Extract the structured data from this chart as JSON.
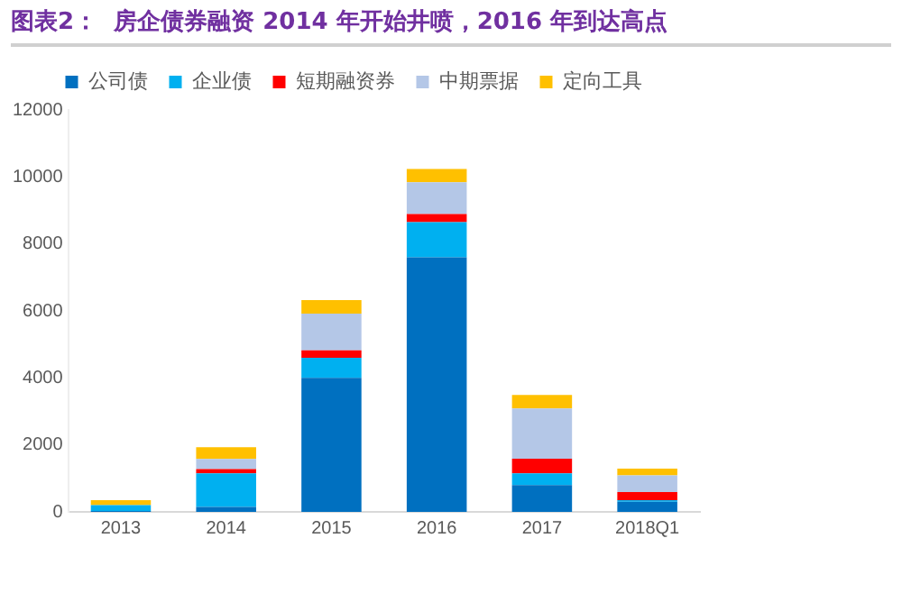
{
  "chart_data": {
    "type": "bar",
    "stacked": true,
    "title": "图表2：  房企债券融资 2014 年开始井喷，2016 年到达高点",
    "categories": [
      "2013",
      "2014",
      "2015",
      "2016",
      "2017",
      "2018Q1"
    ],
    "series": [
      {
        "name": "公司债",
        "color": "#0070c0",
        "values": [
          30,
          150,
          4000,
          7600,
          800,
          300
        ]
      },
      {
        "name": "企业债",
        "color": "#00b0f0",
        "values": [
          170,
          1000,
          600,
          1050,
          350,
          50
        ]
      },
      {
        "name": "短期融资券",
        "color": "#ff0000",
        "values": [
          0,
          130,
          220,
          240,
          440,
          240
        ]
      },
      {
        "name": "中期票据",
        "color": "#b4c7e7",
        "values": [
          null,
          300,
          1100,
          950,
          1500,
          500
        ]
      },
      {
        "name": "定向工具",
        "color": "#ffc000",
        "values": [
          150,
          350,
          400,
          400,
          400,
          200
        ]
      }
    ],
    "ylim": [
      0,
      12000
    ],
    "yticks": [
      0,
      2000,
      4000,
      6000,
      8000,
      10000,
      12000
    ],
    "grid": false,
    "legend": "top"
  }
}
